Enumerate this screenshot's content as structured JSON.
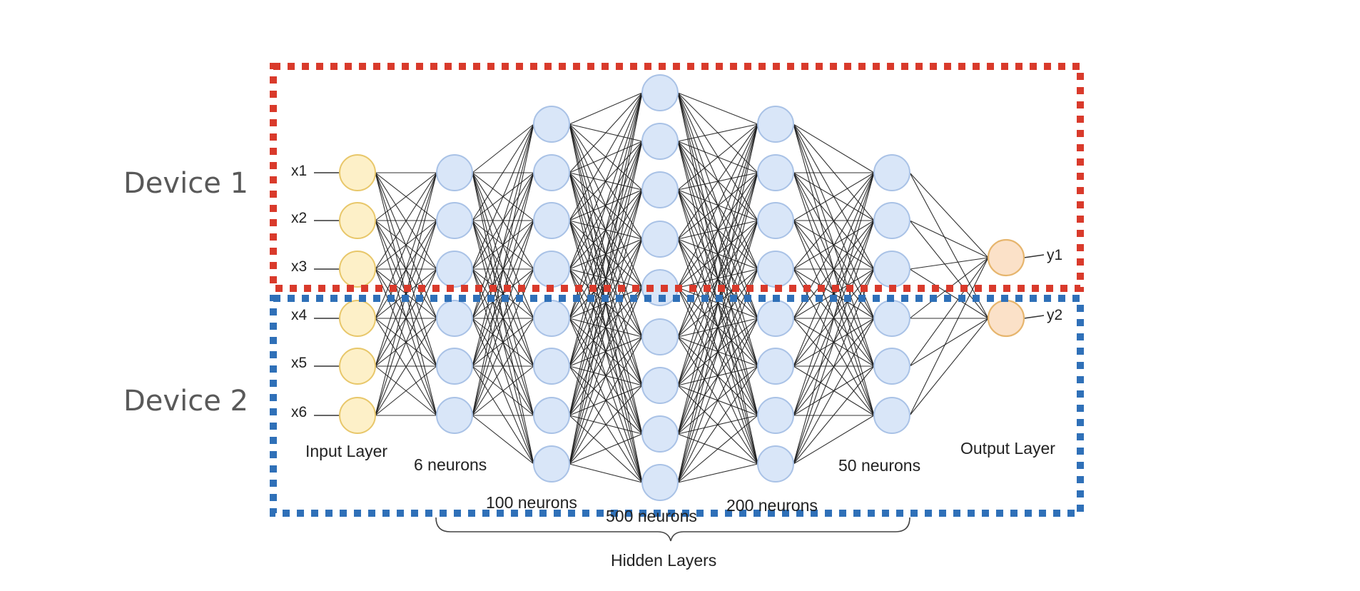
{
  "devices": [
    {
      "label": "Device 1",
      "color": "#d93a2b"
    },
    {
      "label": "Device 2",
      "color": "#2f70b8"
    }
  ],
  "colors": {
    "input_fill": "#fdf0c8",
    "hidden_fill": "#d9e6f8",
    "output_fill": "#fbe1c8"
  },
  "inputs": [
    "x1",
    "x2",
    "x3",
    "x4",
    "x5",
    "x6"
  ],
  "outputs": [
    "y1",
    "y2"
  ],
  "layers": {
    "input": "Input Layer",
    "hidden_1": "6 neurons",
    "hidden_2": "100 neurons",
    "hidden_3": "500 neurons",
    "hidden_4": "200 neurons",
    "hidden_5": "50 neurons",
    "output": "Output Layer",
    "hidden_group": "Hidden Layers"
  },
  "network": {
    "drawn_nodes_per_layer": [
      6,
      6,
      8,
      9,
      8,
      6,
      2
    ]
  }
}
